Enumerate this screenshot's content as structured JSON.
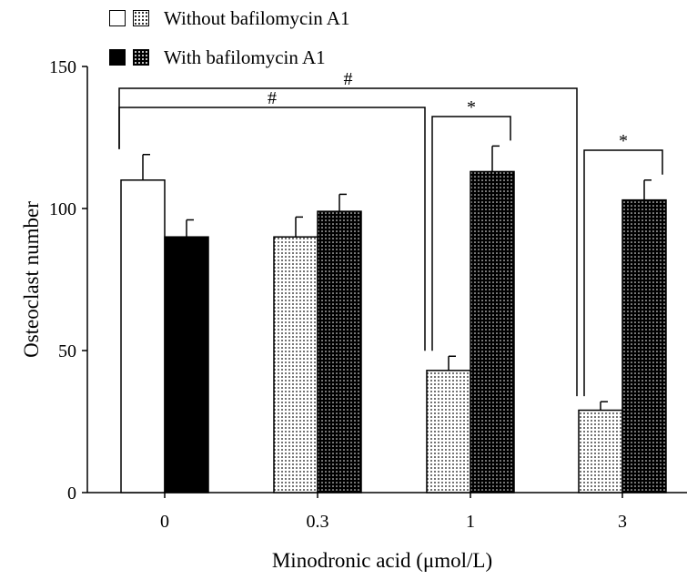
{
  "chart_data": {
    "type": "bar",
    "categories": [
      "0",
      "0.3",
      "1",
      "3"
    ],
    "series": [
      {
        "name": "Without bafilomycin A1",
        "values": [
          110,
          90,
          43,
          29
        ],
        "errors": [
          9,
          7,
          5,
          3
        ],
        "fills": [
          "plain-white",
          "dotted-light",
          "dotted-light",
          "dotted-light"
        ]
      },
      {
        "name": "With bafilomycin A1",
        "values": [
          90,
          99,
          113,
          103
        ],
        "errors": [
          6,
          6,
          9,
          7
        ],
        "fills": [
          "solid-black",
          "dotted-dark",
          "dotted-dark",
          "dotted-dark"
        ]
      }
    ],
    "xlabel": "Minodronic acid (μmol/L)",
    "ylabel": "Osteoclast number",
    "ylim": [
      0,
      150
    ],
    "yticks": [
      0,
      50,
      100,
      150
    ],
    "grid": false,
    "legend_position": "top-left",
    "annotations": [
      {
        "symbol": "#",
        "from": {
          "series": 0,
          "category": 0
        },
        "to": {
          "series": 0,
          "category": 3
        }
      },
      {
        "symbol": "#",
        "from": {
          "series": 0,
          "category": 0
        },
        "to": {
          "series": 0,
          "category": 2
        }
      },
      {
        "symbol": "*",
        "from": {
          "series": 0,
          "category": 2
        },
        "to": {
          "series": 1,
          "category": 2
        }
      },
      {
        "symbol": "*",
        "from": {
          "series": 0,
          "category": 3
        },
        "to": {
          "series": 1,
          "category": 3
        }
      }
    ]
  },
  "legend": {
    "without_label": "Without bafilomycin A1",
    "with_label": "With bafilomycin A1"
  }
}
